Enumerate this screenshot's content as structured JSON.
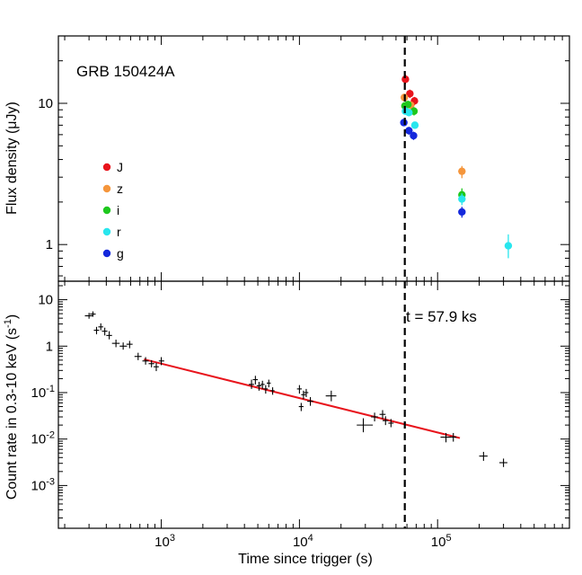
{
  "chart_data": [
    {
      "type": "scatter",
      "panel": "top",
      "title": "GRB 150424A",
      "ylabel": "Flux density (μJy)",
      "xscale": "log",
      "yscale": "log",
      "xlim": [
        180,
        900000
      ],
      "ylim": [
        0.55,
        30
      ],
      "yticks_major": [
        1,
        10
      ],
      "ytick_labels": [
        "1",
        "10"
      ],
      "legend": {
        "position": "left",
        "entries": [
          {
            "name": "J",
            "color": "#e8141c"
          },
          {
            "name": "z",
            "color": "#f5963c"
          },
          {
            "name": "i",
            "color": "#1ec81e"
          },
          {
            "name": "r",
            "color": "#28e6ee"
          },
          {
            "name": "g",
            "color": "#1428dc"
          }
        ]
      },
      "series": [
        {
          "name": "J",
          "color": "#e8141c",
          "points": [
            {
              "x": 58500,
              "y": 14.8,
              "ylo": 13.7,
              "yhi": 16.0
            },
            {
              "x": 63000,
              "y": 11.7,
              "ylo": 10.9,
              "yhi": 12.5
            },
            {
              "x": 68000,
              "y": 10.4,
              "ylo": 9.7,
              "yhi": 11.1
            }
          ]
        },
        {
          "name": "z",
          "color": "#f5963c",
          "points": [
            {
              "x": 57500,
              "y": 11.0,
              "ylo": 10.3,
              "yhi": 11.7
            },
            {
              "x": 64000,
              "y": 9.7,
              "ylo": 9.1,
              "yhi": 10.3
            },
            {
              "x": 150000,
              "y": 3.3,
              "ylo": 2.95,
              "yhi": 3.6
            }
          ]
        },
        {
          "name": "i",
          "color": "#1ec81e",
          "points": [
            {
              "x": 58000,
              "y": 9.6,
              "ylo": 9.1,
              "yhi": 10.1
            },
            {
              "x": 61000,
              "y": 9.8,
              "ylo": 9.3,
              "yhi": 10.3
            },
            {
              "x": 67500,
              "y": 8.8,
              "ylo": 8.2,
              "yhi": 9.4
            },
            {
              "x": 150000,
              "y": 2.25,
              "ylo": 2.0,
              "yhi": 2.5
            }
          ]
        },
        {
          "name": "r",
          "color": "#28e6ee",
          "points": [
            {
              "x": 58500,
              "y": 8.8,
              "ylo": 8.3,
              "yhi": 9.3
            },
            {
              "x": 62000,
              "y": 8.6,
              "ylo": 8.1,
              "yhi": 9.1
            },
            {
              "x": 68500,
              "y": 7.0,
              "ylo": 6.6,
              "yhi": 7.4
            },
            {
              "x": 150000,
              "y": 2.1,
              "ylo": 1.9,
              "yhi": 2.3
            },
            {
              "x": 325000,
              "y": 0.98,
              "ylo": 0.8,
              "yhi": 1.18
            }
          ]
        },
        {
          "name": "g",
          "color": "#1428dc",
          "points": [
            {
              "x": 57000,
              "y": 7.3,
              "ylo": 6.9,
              "yhi": 7.7
            },
            {
              "x": 62000,
              "y": 6.4,
              "ylo": 6.0,
              "yhi": 6.8
            },
            {
              "x": 67000,
              "y": 5.9,
              "ylo": 5.5,
              "yhi": 6.3
            },
            {
              "x": 150000,
              "y": 1.7,
              "ylo": 1.55,
              "yhi": 1.85
            }
          ]
        }
      ]
    },
    {
      "type": "scatter",
      "panel": "bottom",
      "xlabel": "Time since trigger (s)",
      "ylabel": "Count rate in 0.3-10 keV (s⁻¹)",
      "ylabel_parts": [
        "Count rate in 0.3-10 keV (s",
        "-1",
        ")"
      ],
      "xscale": "log",
      "yscale": "log",
      "xlim": [
        180,
        900000
      ],
      "ylim": [
        0.00012,
        25
      ],
      "xtick_labels": [
        {
          "value": 1000,
          "base": "10",
          "exp": "3"
        },
        {
          "value": 10000,
          "base": "10",
          "exp": "4"
        },
        {
          "value": 100000,
          "base": "10",
          "exp": "5"
        }
      ],
      "ytick_labels": [
        {
          "value": 10,
          "label": "10"
        },
        {
          "value": 1,
          "label": "1"
        },
        {
          "value": 0.1,
          "base": "10",
          "exp": "-1"
        },
        {
          "value": 0.01,
          "base": "10",
          "exp": "-2"
        },
        {
          "value": 0.001,
          "base": "10",
          "exp": "-3"
        }
      ],
      "series": [
        {
          "name": "X-ray",
          "color": "#000000",
          "points": [
            {
              "x": 300,
              "y": 4.5,
              "xlo": 280,
              "xhi": 320,
              "ylo": 3.9,
              "yhi": 5.2
            },
            {
              "x": 320,
              "y": 4.9,
              "xlo": 305,
              "xhi": 335,
              "ylo": 4.3,
              "yhi": 5.6
            },
            {
              "x": 340,
              "y": 2.2,
              "xlo": 325,
              "xhi": 355,
              "ylo": 1.8,
              "yhi": 2.6
            },
            {
              "x": 365,
              "y": 2.6,
              "xlo": 350,
              "xhi": 380,
              "ylo": 2.2,
              "yhi": 3.1
            },
            {
              "x": 390,
              "y": 2.1,
              "xlo": 372,
              "xhi": 408,
              "ylo": 1.7,
              "yhi": 2.5
            },
            {
              "x": 420,
              "y": 1.7,
              "xlo": 400,
              "xhi": 440,
              "ylo": 1.4,
              "yhi": 2.1
            },
            {
              "x": 470,
              "y": 1.15,
              "xlo": 440,
              "xhi": 500,
              "ylo": 0.95,
              "yhi": 1.38
            },
            {
              "x": 530,
              "y": 1.0,
              "xlo": 500,
              "xhi": 565,
              "ylo": 0.84,
              "yhi": 1.2
            },
            {
              "x": 590,
              "y": 1.1,
              "xlo": 560,
              "xhi": 620,
              "ylo": 0.9,
              "yhi": 1.3
            },
            {
              "x": 680,
              "y": 0.6,
              "xlo": 640,
              "xhi": 720,
              "ylo": 0.5,
              "yhi": 0.72
            },
            {
              "x": 770,
              "y": 0.48,
              "xlo": 730,
              "xhi": 810,
              "ylo": 0.4,
              "yhi": 0.58
            },
            {
              "x": 850,
              "y": 0.42,
              "xlo": 810,
              "xhi": 890,
              "ylo": 0.35,
              "yhi": 0.5
            },
            {
              "x": 920,
              "y": 0.36,
              "xlo": 880,
              "xhi": 960,
              "ylo": 0.29,
              "yhi": 0.44
            },
            {
              "x": 1000,
              "y": 0.48,
              "xlo": 960,
              "xhi": 1050,
              "ylo": 0.39,
              "yhi": 0.58
            },
            {
              "x": 4500,
              "y": 0.15,
              "xlo": 4300,
              "xhi": 4700,
              "ylo": 0.12,
              "yhi": 0.19
            },
            {
              "x": 4800,
              "y": 0.19,
              "xlo": 4600,
              "xhi": 5000,
              "ylo": 0.15,
              "yhi": 0.23
            },
            {
              "x": 5100,
              "y": 0.14,
              "xlo": 4900,
              "xhi": 5300,
              "ylo": 0.11,
              "yhi": 0.17
            },
            {
              "x": 5400,
              "y": 0.15,
              "xlo": 5200,
              "xhi": 5600,
              "ylo": 0.12,
              "yhi": 0.18
            },
            {
              "x": 5700,
              "y": 0.12,
              "xlo": 5500,
              "xhi": 5900,
              "ylo": 0.095,
              "yhi": 0.145
            },
            {
              "x": 6000,
              "y": 0.16,
              "xlo": 5800,
              "xhi": 6200,
              "ylo": 0.13,
              "yhi": 0.19
            },
            {
              "x": 6400,
              "y": 0.11,
              "xlo": 6200,
              "xhi": 6600,
              "ylo": 0.09,
              "yhi": 0.13
            },
            {
              "x": 10000,
              "y": 0.12,
              "xlo": 9600,
              "xhi": 10400,
              "ylo": 0.095,
              "yhi": 0.145
            },
            {
              "x": 10300,
              "y": 0.05,
              "xlo": 9900,
              "xhi": 10700,
              "ylo": 0.04,
              "yhi": 0.06
            },
            {
              "x": 10700,
              "y": 0.09,
              "xlo": 10300,
              "xhi": 11100,
              "ylo": 0.072,
              "yhi": 0.11
            },
            {
              "x": 11200,
              "y": 0.1,
              "xlo": 10800,
              "xhi": 11600,
              "ylo": 0.08,
              "yhi": 0.12
            },
            {
              "x": 12000,
              "y": 0.065,
              "xlo": 11400,
              "xhi": 12600,
              "ylo": 0.052,
              "yhi": 0.08
            },
            {
              "x": 17000,
              "y": 0.085,
              "xlo": 15500,
              "xhi": 18500,
              "ylo": 0.065,
              "yhi": 0.11
            },
            {
              "x": 29000,
              "y": 0.02,
              "xlo": 26000,
              "xhi": 34000,
              "ylo": 0.014,
              "yhi": 0.028
            },
            {
              "x": 35000,
              "y": 0.03,
              "xlo": 33000,
              "xhi": 37000,
              "ylo": 0.024,
              "yhi": 0.037
            },
            {
              "x": 40000,
              "y": 0.034,
              "xlo": 38000,
              "xhi": 42000,
              "ylo": 0.027,
              "yhi": 0.042
            },
            {
              "x": 42000,
              "y": 0.025,
              "xlo": 40000,
              "xhi": 44000,
              "ylo": 0.02,
              "yhi": 0.031
            },
            {
              "x": 46000,
              "y": 0.022,
              "xlo": 44000,
              "xhi": 48000,
              "ylo": 0.018,
              "yhi": 0.027
            },
            {
              "x": 115000,
              "y": 0.011,
              "xlo": 105000,
              "xhi": 125000,
              "ylo": 0.0085,
              "yhi": 0.0135
            },
            {
              "x": 130000,
              "y": 0.011,
              "xlo": 125000,
              "xhi": 137000,
              "ylo": 0.0088,
              "yhi": 0.0135
            },
            {
              "x": 215000,
              "y": 0.0043,
              "xlo": 200000,
              "xhi": 230000,
              "ylo": 0.0034,
              "yhi": 0.0053
            },
            {
              "x": 300000,
              "y": 0.0031,
              "xlo": 280000,
              "xhi": 320000,
              "ylo": 0.0025,
              "yhi": 0.0038
            }
          ]
        }
      ],
      "fit_line": {
        "color": "#e8141c",
        "x": [
          750,
          145000
        ],
        "y": [
          0.52,
          0.0105
        ]
      }
    }
  ],
  "vline": {
    "x": 57900,
    "label": "t = 57.9 ks"
  }
}
